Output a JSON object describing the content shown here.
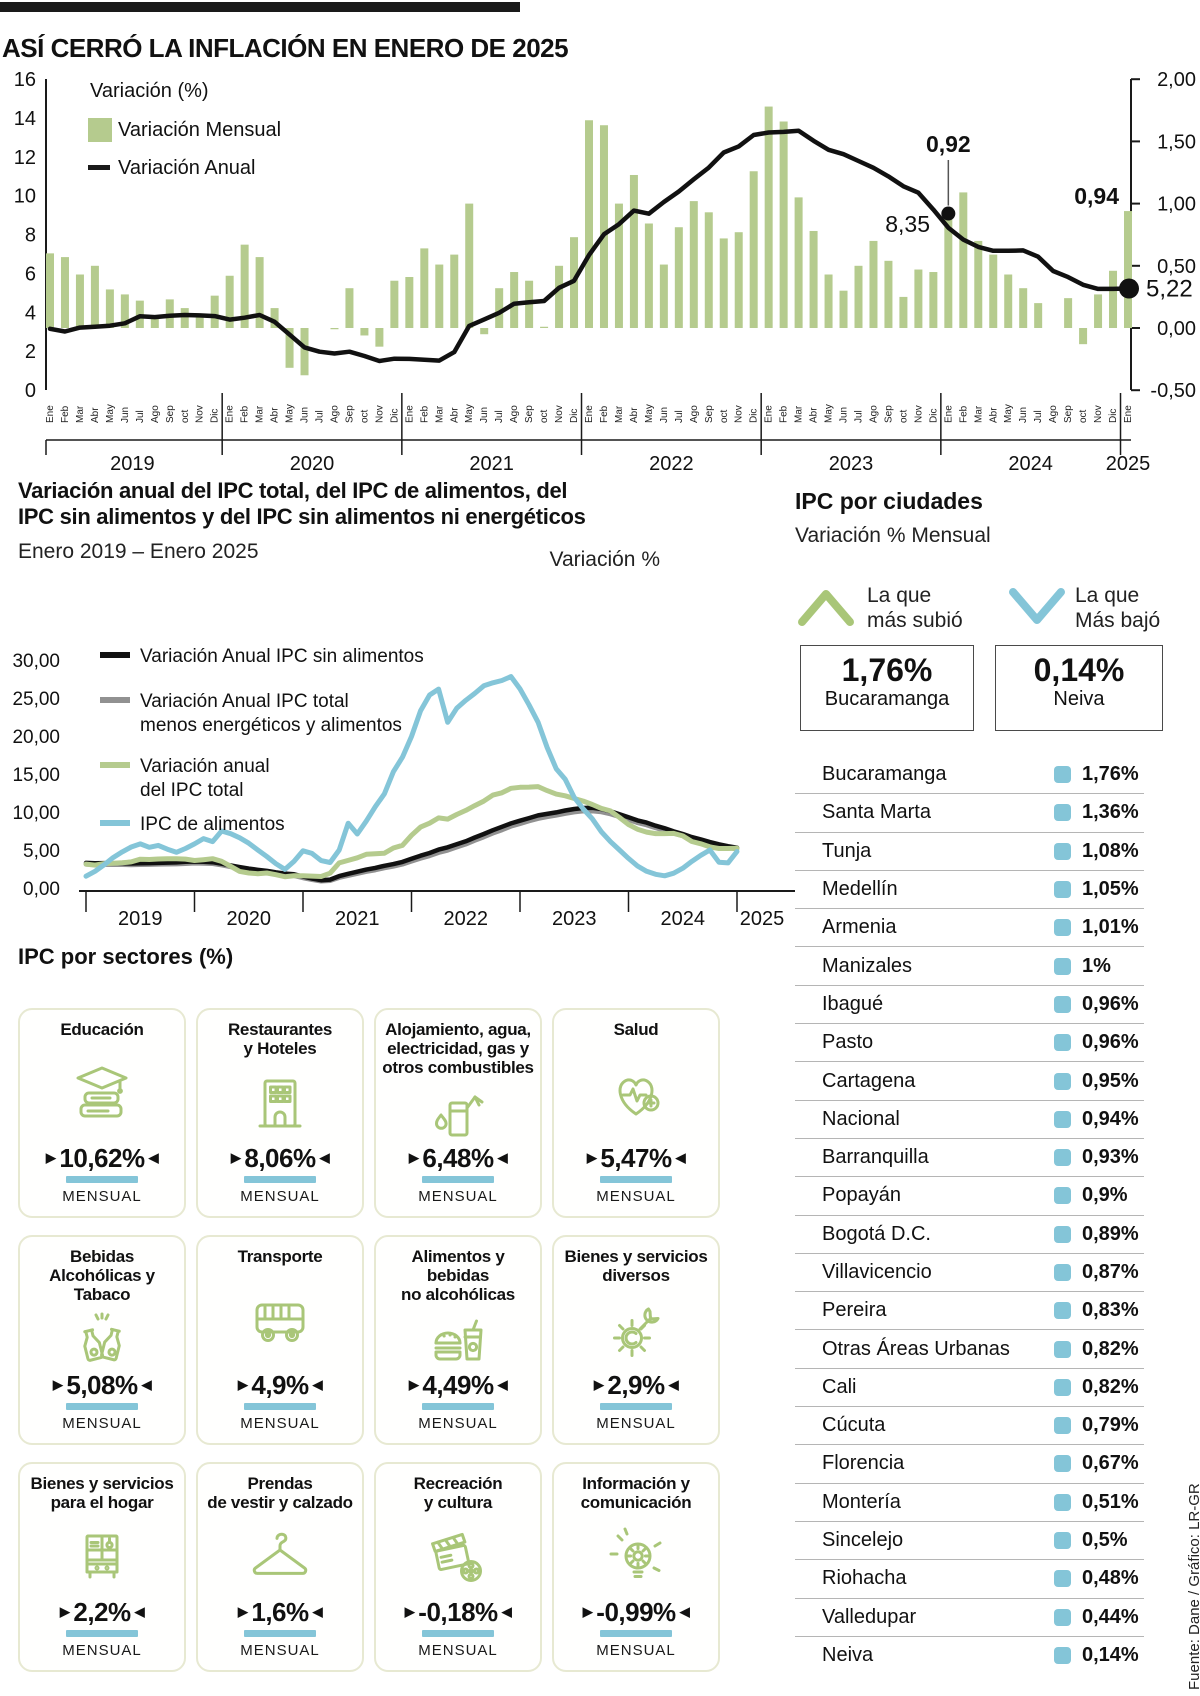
{
  "colors": {
    "green": "#b5cb8e",
    "green_stroke": "#a9c678",
    "blue": "#84c5d8",
    "gray": "#919191",
    "black": "#1c1c1c",
    "divider": "#b5b5b5",
    "card_border": "#e7e9d2"
  },
  "header": {
    "title": "ASÍ CERRÓ LA INFLACIÓN EN ENERO DE 2025"
  },
  "top_chart": {
    "variation_label": "Variación (%)",
    "legend_monthly": "Variación Mensual",
    "legend_annual": "Variación Anual",
    "left_ticks": [
      "0",
      "2",
      "4",
      "6",
      "8",
      "10",
      "12",
      "14",
      "16"
    ],
    "right_ticks": [
      "-0,50",
      "0,00",
      "0,50",
      "1,00",
      "1,50",
      "2,00"
    ],
    "ann_monthly_jan24": "0,92",
    "ann_annual_jan24": "8,35",
    "ann_monthly_jan25": "0,94",
    "ann_annual_jan25": "5,22"
  },
  "mid_chart": {
    "title_lines": [
      "Variación anual del IPC total, del IPC de alimentos, del",
      "IPC sin alimentos y del IPC sin alimentos ni energéticos"
    ],
    "subtitle": "Enero 2019 – Enero 2025",
    "ylabel": "Variación %",
    "y_ticks": [
      "0,00",
      "5,00",
      "10,00",
      "15,00",
      "20,00",
      "25,00",
      "30,00"
    ],
    "legend": [
      {
        "lines": [
          "Variación Anual IPC sin alimentos"
        ],
        "color": "black"
      },
      {
        "lines": [
          "Variación Anual IPC total",
          "menos energéticos y alimentos"
        ],
        "color": "gray"
      },
      {
        "lines": [
          "Variación anual",
          "del IPC total"
        ],
        "color": "green"
      },
      {
        "lines": [
          "IPC de alimentos"
        ],
        "color": "blue"
      }
    ]
  },
  "chart_data": [
    {
      "type": "bar",
      "title": "ASÍ CERRÓ LA INFLACIÓN EN ENERO DE 2025",
      "x_start": "Ene 2019",
      "x_end": "Ene 2025",
      "months": [
        "Ene",
        "Feb",
        "Mar",
        "Abr",
        "May",
        "Jun",
        "Jul",
        "Ago",
        "Sep",
        "oct",
        "Nov",
        "Dic"
      ],
      "years": [
        "2019",
        "2020",
        "2021",
        "2022",
        "2023",
        "2024",
        "2025"
      ],
      "left_axis_range": [
        0,
        16
      ],
      "right_axis_range": [
        -0.5,
        2.0
      ],
      "series": [
        {
          "name": "Variación Mensual",
          "type": "bar",
          "axis": "right",
          "values": [
            0.6,
            0.57,
            0.43,
            0.5,
            0.31,
            0.27,
            0.22,
            0.09,
            0.23,
            0.16,
            0.1,
            0.26,
            0.42,
            0.67,
            0.57,
            0.16,
            -0.32,
            -0.38,
            0.0,
            -0.01,
            0.32,
            -0.06,
            -0.15,
            0.38,
            0.41,
            0.64,
            0.51,
            0.59,
            1.0,
            -0.05,
            0.32,
            0.45,
            0.38,
            0.01,
            0.5,
            0.73,
            1.67,
            1.63,
            1.0,
            1.23,
            0.84,
            0.51,
            0.81,
            1.02,
            0.93,
            0.72,
            0.77,
            1.26,
            1.78,
            1.66,
            1.05,
            0.78,
            0.43,
            0.3,
            0.5,
            0.7,
            0.54,
            0.25,
            0.47,
            0.45,
            0.92,
            1.09,
            0.7,
            0.59,
            0.43,
            0.32,
            0.2,
            0.0,
            0.24,
            -0.13,
            0.27,
            0.46,
            0.94
          ]
        },
        {
          "name": "Variación Anual",
          "type": "line",
          "axis": "left",
          "values": [
            3.15,
            3.01,
            3.21,
            3.25,
            3.31,
            3.43,
            3.79,
            3.75,
            3.82,
            3.86,
            3.84,
            3.8,
            3.62,
            3.72,
            3.86,
            3.51,
            2.85,
            2.19,
            1.97,
            1.88,
            1.97,
            1.75,
            1.49,
            1.61,
            1.6,
            1.56,
            1.51,
            1.95,
            3.3,
            3.63,
            3.97,
            4.44,
            4.51,
            4.58,
            5.26,
            5.62,
            6.94,
            8.01,
            8.53,
            9.23,
            9.07,
            9.67,
            10.21,
            10.84,
            11.44,
            12.22,
            12.53,
            13.12,
            13.25,
            13.28,
            13.34,
            12.82,
            12.36,
            12.13,
            11.78,
            11.43,
            10.99,
            10.48,
            10.15,
            9.28,
            8.35,
            7.74,
            7.36,
            7.16,
            7.16,
            7.18,
            6.86,
            6.12,
            5.81,
            5.41,
            5.2,
            5.2,
            5.22
          ]
        }
      ],
      "annotations": [
        {
          "x": "Ene 2024",
          "monthly": 0.92,
          "annual": 8.35
        },
        {
          "x": "Ene 2025",
          "monthly": 0.94,
          "annual": 5.22
        }
      ]
    },
    {
      "type": "line",
      "title": "Variación anual del IPC total, del IPC de alimentos, del IPC sin alimentos y del IPC sin alimentos ni energéticos",
      "subtitle": "Enero 2019 – Enero 2025",
      "ylabel": "Variación %",
      "ylim": [
        0,
        30
      ],
      "years": [
        "2019",
        "2020",
        "2021",
        "2022",
        "2023",
        "2024",
        "2025"
      ],
      "series": [
        {
          "name": "Variación Anual IPC sin alimentos",
          "color": "black",
          "values": [
            3.3,
            3.26,
            3.28,
            3.26,
            3.25,
            3.22,
            3.26,
            3.28,
            3.3,
            3.34,
            3.37,
            3.45,
            3.49,
            3.45,
            3.4,
            3.2,
            2.96,
            2.75,
            2.55,
            2.4,
            2.25,
            2.05,
            1.9,
            1.8,
            1.5,
            1.25,
            1.03,
            1.1,
            1.56,
            1.87,
            2.15,
            2.42,
            2.64,
            2.92,
            3.14,
            3.44,
            3.85,
            4.25,
            4.6,
            5.05,
            5.35,
            5.75,
            6.15,
            6.65,
            7.1,
            7.6,
            8.05,
            8.5,
            8.85,
            9.2,
            9.55,
            9.75,
            9.95,
            10.2,
            10.4,
            10.52,
            10.55,
            10.4,
            10.1,
            9.7,
            9.3,
            8.9,
            8.6,
            8.2,
            7.85,
            7.45,
            7.1,
            6.7,
            6.4,
            6.05,
            5.75,
            5.5,
            5.3
          ]
        },
        {
          "name": "Variación Anual IPC total menos energéticos y alimentos",
          "color": "gray",
          "values": [
            3.1,
            3.08,
            3.08,
            3.06,
            3.05,
            3.03,
            3.06,
            3.08,
            3.1,
            3.12,
            3.15,
            3.2,
            3.25,
            3.22,
            3.18,
            3.0,
            2.78,
            2.55,
            2.35,
            2.2,
            2.05,
            1.88,
            1.72,
            1.6,
            1.32,
            1.08,
            0.88,
            0.95,
            1.35,
            1.62,
            1.88,
            2.14,
            2.36,
            2.62,
            2.84,
            3.12,
            3.5,
            3.88,
            4.22,
            4.65,
            4.95,
            5.35,
            5.75,
            6.25,
            6.7,
            7.2,
            7.62,
            8.1,
            8.45,
            8.8,
            9.12,
            9.35,
            9.55,
            9.78,
            9.98,
            10.1,
            10.12,
            10.0,
            9.72,
            9.35,
            8.96,
            8.58,
            8.28,
            7.9,
            7.55,
            7.18,
            6.85,
            6.48,
            6.18,
            5.85,
            5.58,
            5.32,
            5.12
          ]
        },
        {
          "name": "Variación anual del IPC total",
          "color": "green",
          "values": [
            3.15,
            3.01,
            3.21,
            3.25,
            3.31,
            3.43,
            3.79,
            3.75,
            3.82,
            3.86,
            3.84,
            3.8,
            3.62,
            3.72,
            3.86,
            3.51,
            2.85,
            2.19,
            1.97,
            1.88,
            1.97,
            1.75,
            1.49,
            1.61,
            1.6,
            1.56,
            1.51,
            1.95,
            3.3,
            3.63,
            3.97,
            4.44,
            4.51,
            4.58,
            5.26,
            5.62,
            6.94,
            8.01,
            8.53,
            9.23,
            9.07,
            9.67,
            10.21,
            10.84,
            11.44,
            12.22,
            12.53,
            13.12,
            13.25,
            13.28,
            13.34,
            12.82,
            12.36,
            12.13,
            11.78,
            11.43,
            10.99,
            10.48,
            10.15,
            9.28,
            8.35,
            7.74,
            7.36,
            7.16,
            7.16,
            7.18,
            6.86,
            6.12,
            5.81,
            5.41,
            5.2,
            5.2,
            5.22
          ]
        },
        {
          "name": "IPC de alimentos",
          "color": "blue",
          "values": [
            1.55,
            2.2,
            3.05,
            4.0,
            4.75,
            5.4,
            5.8,
            5.35,
            5.6,
            5.1,
            4.7,
            5.2,
            5.8,
            6.5,
            6.1,
            7.5,
            7.15,
            6.6,
            5.9,
            5.0,
            4.15,
            3.2,
            2.45,
            3.5,
            4.9,
            4.55,
            3.6,
            3.35,
            5.0,
            8.52,
            7.1,
            8.8,
            10.7,
            12.4,
            15.3,
            17.23,
            19.94,
            23.3,
            25.4,
            26.17,
            21.8,
            23.65,
            24.7,
            25.6,
            26.6,
            27.0,
            27.3,
            27.81,
            26.2,
            24.1,
            21.8,
            18.5,
            15.7,
            14.3,
            11.9,
            10.4,
            9.1,
            7.4,
            6.1,
            5.0,
            3.9,
            2.9,
            2.2,
            1.8,
            1.6,
            1.95,
            2.6,
            3.5,
            4.3,
            5.0,
            3.4,
            3.3,
            4.8
          ]
        }
      ]
    }
  ],
  "cities": {
    "heading": "IPC por ciudades",
    "subheading": "Variación % Mensual",
    "up_icon": "chevron-up-icon",
    "down_icon": "chevron-down-icon",
    "up_label_lines": [
      "La que",
      "más subió"
    ],
    "down_label_lines": [
      "La que",
      "Más bajó"
    ],
    "up_box": {
      "value": "1,76%",
      "city": "Bucaramanga"
    },
    "down_box": {
      "value": "0,14%",
      "city": "Neiva"
    },
    "rows": [
      {
        "city": "Bucaramanga",
        "value": "1,76%"
      },
      {
        "city": "Santa Marta",
        "value": "1,36%"
      },
      {
        "city": "Tunja",
        "value": "1,08%"
      },
      {
        "city": "Medellín",
        "value": "1,05%"
      },
      {
        "city": "Armenia",
        "value": "1,01%"
      },
      {
        "city": "Manizales",
        "value": "1%"
      },
      {
        "city": "Ibagué",
        "value": "0,96%"
      },
      {
        "city": "Pasto",
        "value": "0,96%"
      },
      {
        "city": "Cartagena",
        "value": "0,95%"
      },
      {
        "city": "Nacional",
        "value": "0,94%"
      },
      {
        "city": "Barranquilla",
        "value": "0,93%"
      },
      {
        "city": "Popayán",
        "value": "0,9%"
      },
      {
        "city": "Bogotá D.C.",
        "value": "0,89%"
      },
      {
        "city": "Villavicencio",
        "value": "0,87%"
      },
      {
        "city": "Pereira",
        "value": "0,83%"
      },
      {
        "city": "Otras Áreas Urbanas",
        "value": "0,82%"
      },
      {
        "city": "Cali",
        "value": "0,82%"
      },
      {
        "city": "Cúcuta",
        "value": "0,79%"
      },
      {
        "city": "Florencia",
        "value": "0,67%"
      },
      {
        "city": "Montería",
        "value": "0,51%"
      },
      {
        "city": "Sincelejo",
        "value": "0,5%"
      },
      {
        "city": "Riohacha",
        "value": "0,48%"
      },
      {
        "city": "Valledupar",
        "value": "0,44%"
      },
      {
        "city": "Neiva",
        "value": "0,14%"
      }
    ]
  },
  "sectors": {
    "heading": "IPC por sectores (%)",
    "period": "MENSUAL",
    "cards": [
      {
        "title_lines": [
          "Educación"
        ],
        "value": "10,62%",
        "icon": "education-icon"
      },
      {
        "title_lines": [
          "Restaurantes",
          "y Hoteles"
        ],
        "value": "8,06%",
        "icon": "hotel-icon"
      },
      {
        "title_lines": [
          "Alojamiento, agua,",
          "electricidad, gas y",
          "otros combustibles"
        ],
        "value": "6,48%",
        "icon": "fuel-icon"
      },
      {
        "title_lines": [
          "Salud"
        ],
        "value": "5,47%",
        "icon": "health-icon"
      },
      {
        "title_lines": [
          "Bebidas",
          "Alcohólicas y Tabaco"
        ],
        "value": "5,08%",
        "icon": "bottles-icon"
      },
      {
        "title_lines": [
          "Transporte"
        ],
        "value": "4,9%",
        "icon": "bus-icon"
      },
      {
        "title_lines": [
          "Alimentos y bebidas",
          "no alcohólicas"
        ],
        "value": "4,49%",
        "icon": "food-icon"
      },
      {
        "title_lines": [
          "Bienes y servicios",
          "diversos"
        ],
        "value": "2,9%",
        "icon": "gear-wrench-icon"
      },
      {
        "title_lines": [
          "Bienes y servicios",
          "para el hogar"
        ],
        "value": "2,2%",
        "icon": "furniture-icon"
      },
      {
        "title_lines": [
          "Prendas",
          "de vestir y calzado"
        ],
        "value": "1,6%",
        "icon": "hanger-icon"
      },
      {
        "title_lines": [
          "Recreación",
          "y cultura"
        ],
        "value": "-0,18%",
        "icon": "clapperboard-icon"
      },
      {
        "title_lines": [
          "Información y",
          "comunicación"
        ],
        "value": "-0,99%",
        "icon": "idea-icon"
      }
    ]
  },
  "source": "Fuente: Dane / Gráfico: LR-GR"
}
